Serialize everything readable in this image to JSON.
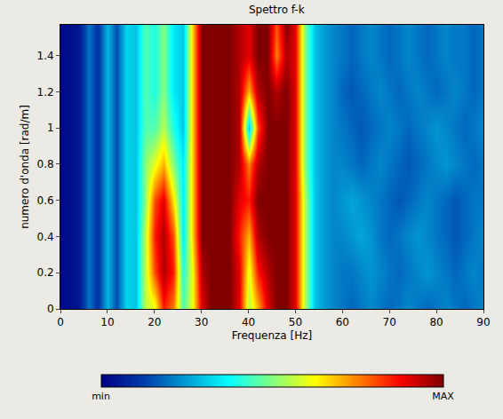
{
  "chart_data": {
    "type": "heatmap",
    "title": "Spettro f-k",
    "x_label": "Frequenza [Hz]",
    "y_label": "numero d'onda [rad/m]",
    "xlim": [
      0,
      90
    ],
    "ylim": [
      0,
      1.57
    ],
    "xticks": [
      0,
      10,
      20,
      30,
      40,
      50,
      60,
      70,
      80,
      90
    ],
    "yticks": [
      0,
      0.2,
      0.4,
      0.6,
      0.8,
      1,
      1.2,
      1.4
    ],
    "x": [
      0,
      2,
      4,
      6,
      8,
      10,
      12,
      14,
      16,
      18,
      20,
      22,
      24,
      26,
      28,
      30,
      32,
      34,
      36,
      38,
      40,
      42,
      44,
      46,
      48,
      50,
      52,
      54,
      56,
      58,
      60,
      62,
      64,
      66,
      68,
      70,
      72,
      74,
      76,
      78,
      80,
      82,
      84,
      86,
      88,
      90
    ],
    "y": [
      0,
      0.2,
      0.4,
      0.6,
      0.8,
      1.0,
      1.2,
      1.4,
      1.6
    ],
    "z": [
      [
        0.02,
        0.03,
        0.05,
        0.2,
        0.1,
        0.28,
        0.15,
        0.32,
        0.3,
        0.55,
        0.6,
        0.85,
        0.75,
        0.45,
        0.6,
        0.9,
        1,
        1,
        1,
        0.9,
        0.55,
        0.7,
        0.9,
        1,
        1,
        0.9,
        0.55,
        0.3,
        0.25,
        0.22,
        0.2,
        0.18,
        0.2,
        0.22,
        0.2,
        0.18,
        0.2,
        0.22,
        0.2,
        0.18,
        0.2,
        0.22,
        0.2,
        0.18,
        0.2,
        0.22
      ],
      [
        0.02,
        0.03,
        0.05,
        0.2,
        0.1,
        0.28,
        0.15,
        0.32,
        0.3,
        0.55,
        0.8,
        0.95,
        0.85,
        0.4,
        0.6,
        0.95,
        1,
        1,
        1,
        0.9,
        0.6,
        0.85,
        0.95,
        1,
        1,
        0.9,
        0.55,
        0.3,
        0.25,
        0.22,
        0.2,
        0.2,
        0.22,
        0.24,
        0.22,
        0.2,
        0.18,
        0.2,
        0.22,
        0.24,
        0.22,
        0.2,
        0.18,
        0.2,
        0.22,
        0.2
      ],
      [
        0.02,
        0.03,
        0.05,
        0.2,
        0.1,
        0.28,
        0.15,
        0.32,
        0.3,
        0.55,
        0.85,
        0.95,
        0.8,
        0.35,
        0.65,
        1,
        1,
        1,
        1,
        0.85,
        0.7,
        0.95,
        1,
        1,
        1,
        0.9,
        0.55,
        0.3,
        0.25,
        0.22,
        0.22,
        0.24,
        0.26,
        0.24,
        0.2,
        0.18,
        0.2,
        0.22,
        0.24,
        0.22,
        0.2,
        0.18,
        0.16,
        0.18,
        0.2,
        0.22
      ],
      [
        0.02,
        0.03,
        0.05,
        0.2,
        0.1,
        0.28,
        0.15,
        0.32,
        0.3,
        0.5,
        0.8,
        0.9,
        0.65,
        0.35,
        0.65,
        1,
        1,
        1,
        1,
        0.9,
        0.85,
        1,
        1,
        1,
        1,
        0.9,
        0.55,
        0.3,
        0.25,
        0.22,
        0.24,
        0.26,
        0.24,
        0.22,
        0.2,
        0.18,
        0.16,
        0.18,
        0.2,
        0.22,
        0.2,
        0.18,
        0.16,
        0.18,
        0.2,
        0.2
      ],
      [
        0.02,
        0.03,
        0.05,
        0.2,
        0.1,
        0.28,
        0.15,
        0.32,
        0.3,
        0.5,
        0.6,
        0.7,
        0.5,
        0.35,
        0.65,
        1,
        1,
        1,
        1,
        0.95,
        0.75,
        0.95,
        1,
        1,
        1,
        0.9,
        0.5,
        0.3,
        0.25,
        0.22,
        0.22,
        0.2,
        0.18,
        0.2,
        0.22,
        0.2,
        0.18,
        0.16,
        0.18,
        0.2,
        0.22,
        0.24,
        0.22,
        0.2,
        0.18,
        0.2
      ],
      [
        0.02,
        0.03,
        0.05,
        0.2,
        0.1,
        0.28,
        0.15,
        0.32,
        0.3,
        0.45,
        0.45,
        0.55,
        0.4,
        0.3,
        0.65,
        1,
        1,
        1,
        1,
        0.95,
        0.3,
        0.8,
        1,
        1,
        1,
        0.9,
        0.5,
        0.3,
        0.25,
        0.22,
        0.2,
        0.18,
        0.16,
        0.18,
        0.2,
        0.22,
        0.2,
        0.18,
        0.2,
        0.22,
        0.24,
        0.22,
        0.2,
        0.18,
        0.2,
        0.22
      ],
      [
        0.02,
        0.03,
        0.05,
        0.2,
        0.1,
        0.28,
        0.15,
        0.32,
        0.3,
        0.45,
        0.4,
        0.5,
        0.35,
        0.3,
        0.65,
        1,
        1,
        1,
        1,
        0.95,
        0.7,
        0.95,
        1,
        0.95,
        1,
        0.9,
        0.5,
        0.3,
        0.25,
        0.22,
        0.18,
        0.16,
        0.18,
        0.2,
        0.22,
        0.2,
        0.18,
        0.2,
        0.22,
        0.2,
        0.18,
        0.2,
        0.22,
        0.2,
        0.18,
        0.2
      ],
      [
        0.02,
        0.03,
        0.05,
        0.2,
        0.1,
        0.28,
        0.15,
        0.32,
        0.3,
        0.45,
        0.4,
        0.5,
        0.35,
        0.3,
        0.65,
        1,
        1,
        1,
        1,
        0.95,
        0.9,
        1,
        1,
        0.75,
        0.95,
        0.9,
        0.5,
        0.3,
        0.25,
        0.22,
        0.2,
        0.18,
        0.2,
        0.22,
        0.2,
        0.18,
        0.2,
        0.22,
        0.2,
        0.18,
        0.2,
        0.22,
        0.2,
        0.2,
        0.18,
        0.2
      ],
      [
        0.02,
        0.03,
        0.05,
        0.2,
        0.1,
        0.28,
        0.15,
        0.32,
        0.3,
        0.45,
        0.4,
        0.5,
        0.35,
        0.3,
        0.65,
        1,
        1,
        1,
        1,
        0.95,
        0.9,
        1,
        1,
        0.8,
        1,
        0.9,
        0.5,
        0.3,
        0.25,
        0.22,
        0.2,
        0.18,
        0.2,
        0.22,
        0.2,
        0.18,
        0.2,
        0.22,
        0.2,
        0.18,
        0.2,
        0.22,
        0.2,
        0.2,
        0.18,
        0.2
      ]
    ],
    "colorbar": {
      "range": [
        0,
        1
      ],
      "ticks": [
        {
          "value": 0,
          "label": "min"
        },
        {
          "value": 1,
          "label": "MAX"
        }
      ]
    }
  }
}
